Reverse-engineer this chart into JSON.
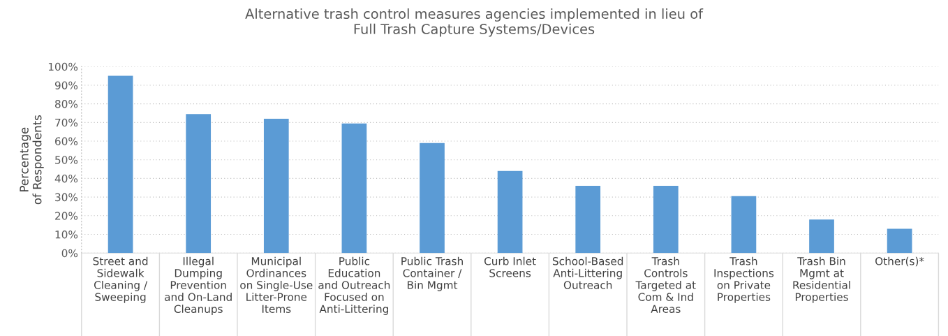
{
  "chart_data": {
    "type": "bar",
    "title": "Alternative trash control measures agencies implemented in lieu of\nFull Trash Capture Systems/Devices",
    "ylabel": "Percentage\nof Respondents",
    "categories": [
      "Street and\nSidewalk\nCleaning /\nSweeping",
      "Illegal\nDumping\nPrevention\nand On-Land\nCleanups",
      "Municipal\nOrdinances\non Single-Use\nLitter-Prone\nItems",
      "Public\nEducation\nand Outreach\nFocused on\nAnti-Littering",
      "Public Trash\nContainer /\nBin Mgmt",
      "Curb Inlet\nScreens",
      "School-Based\nAnti-Littering\nOutreach",
      "Trash\nControls\nTargeted at\nCom & Ind\nAreas",
      "Trash\nInspections\non Private\nProperties",
      "Trash Bin\nMgmt at\nResidential\nProperties",
      "Other(s)*"
    ],
    "values": [
      95,
      74.5,
      72,
      69.5,
      59,
      44,
      36,
      36,
      30.5,
      18,
      13
    ],
    "color": "#5b9bd5",
    "ylim": [
      0,
      100
    ],
    "yticks": [
      {
        "value": 0,
        "label": "0%"
      },
      {
        "value": 10,
        "label": "10%"
      },
      {
        "value": 20,
        "label": "20%"
      },
      {
        "value": 30,
        "label": "30%"
      },
      {
        "value": 40,
        "label": "40%"
      },
      {
        "value": 50,
        "label": "50%"
      },
      {
        "value": 60,
        "label": "60%"
      },
      {
        "value": 70,
        "label": "70%"
      },
      {
        "value": 80,
        "label": "80%"
      },
      {
        "value": 90,
        "label": "90%"
      },
      {
        "value": 100,
        "label": "100%"
      }
    ],
    "grid": "y",
    "legend": false
  }
}
